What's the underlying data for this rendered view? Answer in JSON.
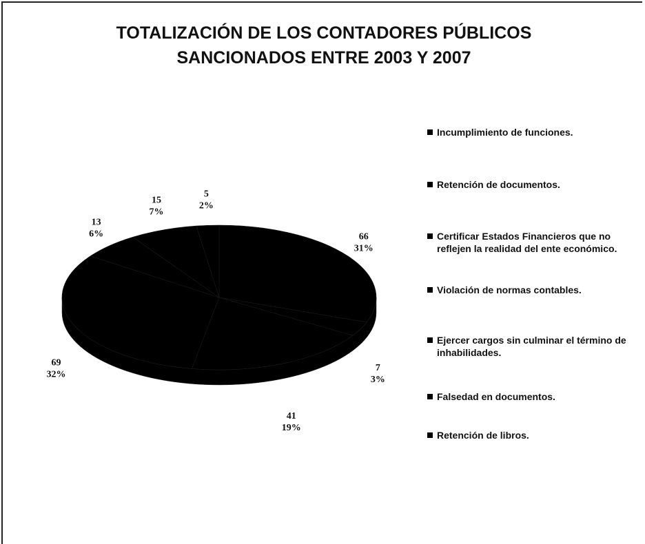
{
  "chart_data": {
    "type": "pie3d",
    "title": "TOTALIZACIÓN DE LOS CONTADORES PÚBLICOS SANCIONADOS ENTRE 2003 Y 2007",
    "categories": [
      "Incumplimiento de funciones.",
      "Retención de documentos.",
      "Certificar Estados Financieros que no reflejen la realidad del ente económico.",
      "Violación de normas contables.",
      "Ejercer cargos sin culminar el término de inhabilidades.",
      "Falsedad en documentos.",
      "Retención de libros."
    ],
    "values": [
      66,
      7,
      41,
      69,
      13,
      15,
      5
    ],
    "percents": [
      31,
      3,
      19,
      32,
      6,
      7,
      2
    ],
    "percent_labels": [
      "31%",
      "3%",
      "19%",
      "32%",
      "6%",
      "7%",
      "2%"
    ],
    "colors": [
      "#000000",
      "#000000",
      "#000000",
      "#000000",
      "#000000",
      "#000000",
      "#000000"
    ],
    "legend": "right"
  }
}
